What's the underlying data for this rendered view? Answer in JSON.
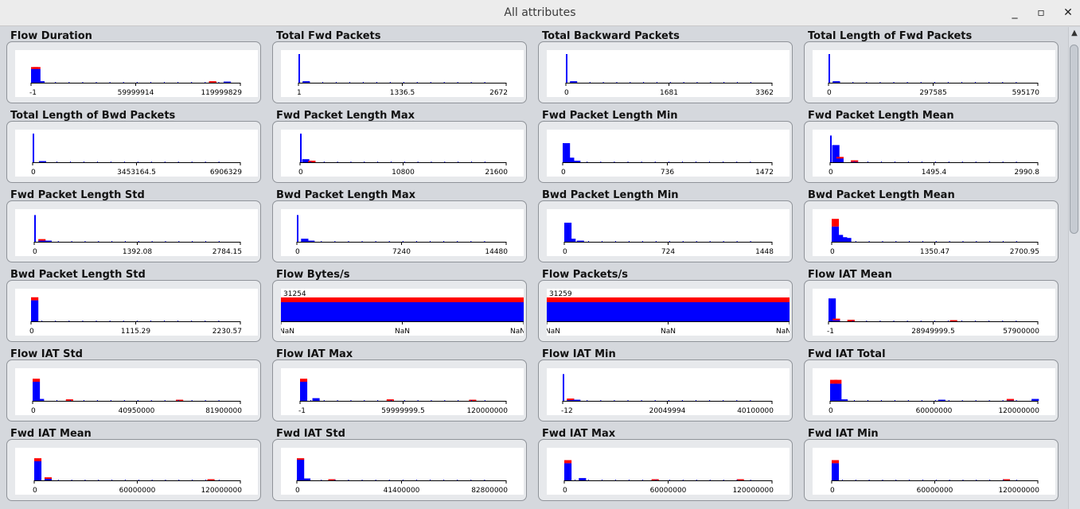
{
  "window": {
    "title": "All attributes",
    "minimize_icon": "minimize-icon",
    "maximize_icon": "maximize-icon",
    "close_icon": "close-icon",
    "minimize_glyph": "_",
    "maximize_glyph": "▫",
    "close_glyph": "✕"
  },
  "scrollbar": {
    "up_icon": "arrow-up-icon",
    "up_glyph": "▲"
  },
  "colors": {
    "nominal": "#0000ff",
    "overflow": "#ff0000",
    "axis": "#000000"
  },
  "attributes": [
    {
      "name": "Flow Duration",
      "ticks": [
        "-1",
        "59999914",
        "119999829"
      ],
      "bins": [
        {
          "x": 0.0,
          "b": 0.36,
          "r": 0.05
        },
        {
          "x": 0.01,
          "b": 0.36,
          "r": 0.05
        },
        {
          "x": 0.03,
          "b": 0.04,
          "r": 0
        },
        {
          "x": 0.85,
          "b": 0.02,
          "r": 0.02
        },
        {
          "x": 0.92,
          "b": 0.03,
          "r": 0
        }
      ]
    },
    {
      "name": "Total Fwd Packets",
      "ticks": [
        "1",
        "1336.5",
        "2672"
      ],
      "bins": [
        {
          "x": 0.0,
          "b": 0.75,
          "r": 0
        },
        {
          "x": 0.02,
          "b": 0.04,
          "r": 0
        }
      ]
    },
    {
      "name": "Total Backward Packets",
      "ticks": [
        "0",
        "1681",
        "3362"
      ],
      "bins": [
        {
          "x": 0.0,
          "b": 0.75,
          "r": 0
        },
        {
          "x": 0.02,
          "b": 0.04,
          "r": 0
        }
      ]
    },
    {
      "name": "Total Length of Fwd Packets",
      "ticks": [
        "0",
        "297585",
        "595170"
      ],
      "bins": [
        {
          "x": 0.0,
          "b": 0.75,
          "r": 0
        },
        {
          "x": 0.02,
          "b": 0.04,
          "r": 0
        }
      ]
    },
    {
      "name": "Total Length of Bwd Packets",
      "ticks": [
        "0",
        "3453164.5",
        "6906329"
      ],
      "bins": [
        {
          "x": 0.0,
          "b": 0.75,
          "r": 0
        },
        {
          "x": 0.03,
          "b": 0.03,
          "r": 0
        }
      ]
    },
    {
      "name": "Fwd Packet Length Max",
      "ticks": [
        "0",
        "10800",
        "21600"
      ],
      "bins": [
        {
          "x": 0.0,
          "b": 0.75,
          "r": 0
        },
        {
          "x": 0.01,
          "b": 0.08,
          "r": 0
        },
        {
          "x": 0.04,
          "b": 0.03,
          "r": 0.01
        }
      ]
    },
    {
      "name": "Fwd Packet Length Min",
      "ticks": [
        "0",
        "736",
        "1472"
      ],
      "bins": [
        {
          "x": 0.0,
          "b": 0.5,
          "r": 0
        },
        {
          "x": 0.02,
          "b": 0.12,
          "r": 0
        },
        {
          "x": 0.05,
          "b": 0.04,
          "r": 0
        }
      ]
    },
    {
      "name": "Fwd Packet Length Mean",
      "ticks": [
        "0",
        "1495.4",
        "2990.8"
      ],
      "bins": [
        {
          "x": 0.0,
          "b": 0.7,
          "r": 0
        },
        {
          "x": 0.01,
          "b": 0.45,
          "r": 0
        },
        {
          "x": 0.03,
          "b": 0.12,
          "r": 0.02
        },
        {
          "x": 0.1,
          "b": 0.03,
          "r": 0.02
        }
      ]
    },
    {
      "name": "Fwd Packet Length Std",
      "ticks": [
        "0",
        "1392.08",
        "2784.15"
      ],
      "bins": [
        {
          "x": 0.0,
          "b": 0.7,
          "r": 0
        },
        {
          "x": 0.02,
          "b": 0.05,
          "r": 0.02
        },
        {
          "x": 0.05,
          "b": 0.03,
          "r": 0
        }
      ]
    },
    {
      "name": "Bwd Packet Length Max",
      "ticks": [
        "0",
        "7240",
        "14480"
      ],
      "bins": [
        {
          "x": 0.0,
          "b": 0.7,
          "r": 0
        },
        {
          "x": 0.02,
          "b": 0.08,
          "r": 0
        },
        {
          "x": 0.05,
          "b": 0.03,
          "r": 0
        }
      ]
    },
    {
      "name": "Bwd Packet Length Min",
      "ticks": [
        "0",
        "724",
        "1448"
      ],
      "bins": [
        {
          "x": 0.0,
          "b": 0.5,
          "r": 0
        },
        {
          "x": 0.02,
          "b": 0.08,
          "r": 0
        },
        {
          "x": 0.06,
          "b": 0.03,
          "r": 0
        }
      ]
    },
    {
      "name": "Bwd Packet Length Mean",
      "ticks": [
        "0",
        "1350.47",
        "2700.95"
      ],
      "bins": [
        {
          "x": 0.0,
          "b": 0.4,
          "r": 0.2
        },
        {
          "x": 0.02,
          "b": 0.18,
          "r": 0
        },
        {
          "x": 0.04,
          "b": 0.12,
          "r": 0
        },
        {
          "x": 0.06,
          "b": 0.1,
          "r": 0
        }
      ]
    },
    {
      "name": "Bwd Packet Length Std",
      "ticks": [
        "0",
        "1115.29",
        "2230.57"
      ],
      "bins": [
        {
          "x": 0.0,
          "b": 0.55,
          "r": 0.08
        }
      ]
    },
    {
      "name": "Flow Bytes/s",
      "ticks": [
        "NaN",
        "NaN",
        "NaN"
      ],
      "count_label": "31254",
      "full_bar": true
    },
    {
      "name": "Flow Packets/s",
      "ticks": [
        "NaN",
        "NaN",
        "NaN"
      ],
      "count_label": "31259",
      "full_bar": true
    },
    {
      "name": "Flow IAT Mean",
      "ticks": [
        "-1",
        "28949999.5",
        "57900000"
      ],
      "bins": [
        {
          "x": 0.0,
          "b": 0.6,
          "r": 0
        },
        {
          "x": 0.02,
          "b": 0.05,
          "r": 0.02
        },
        {
          "x": 0.09,
          "b": 0,
          "r": 0.04
        },
        {
          "x": 0.58,
          "b": 0,
          "r": 0.03
        }
      ]
    },
    {
      "name": "Flow IAT Std",
      "ticks": [
        "0",
        "40950000",
        "81900000"
      ],
      "bins": [
        {
          "x": 0.0,
          "b": 0.5,
          "r": 0.08
        },
        {
          "x": 0.02,
          "b": 0.05,
          "r": 0
        },
        {
          "x": 0.16,
          "b": 0,
          "r": 0.04
        },
        {
          "x": 0.69,
          "b": 0,
          "r": 0.03
        }
      ]
    },
    {
      "name": "Flow IAT Max",
      "ticks": [
        "-1",
        "59999999.5",
        "120000000"
      ],
      "bins": [
        {
          "x": 0.0,
          "b": 0.5,
          "r": 0.08
        },
        {
          "x": 0.06,
          "b": 0.07,
          "r": 0
        },
        {
          "x": 0.42,
          "b": 0,
          "r": 0.04
        },
        {
          "x": 0.82,
          "b": 0,
          "r": 0.03
        }
      ]
    },
    {
      "name": "Flow IAT Min",
      "ticks": [
        "-12",
        "20049994",
        "40100000"
      ],
      "bins": [
        {
          "x": 0.0,
          "b": 0.7,
          "r": 0
        },
        {
          "x": 0.02,
          "b": 0.04,
          "r": 0.02
        },
        {
          "x": 0.05,
          "b": 0.03,
          "r": 0
        }
      ]
    },
    {
      "name": "Fwd IAT Total",
      "ticks": [
        "0",
        "60000000",
        "120000000"
      ],
      "bins": [
        {
          "x": 0.0,
          "b": 0.45,
          "r": 0.1
        },
        {
          "x": 0.02,
          "b": 0.45,
          "r": 0.1
        },
        {
          "x": 0.05,
          "b": 0.04,
          "r": 0
        },
        {
          "x": 0.52,
          "b": 0.03,
          "r": 0
        },
        {
          "x": 0.85,
          "b": 0.03,
          "r": 0.02
        },
        {
          "x": 0.97,
          "b": 0.05,
          "r": 0
        }
      ]
    },
    {
      "name": "Fwd IAT Mean",
      "ticks": [
        "0",
        "60000000",
        "120000000"
      ],
      "bins": [
        {
          "x": 0.0,
          "b": 0.5,
          "r": 0.08
        },
        {
          "x": 0.05,
          "b": 0.05,
          "r": 0.03
        },
        {
          "x": 0.84,
          "b": 0,
          "r": 0.03
        }
      ]
    },
    {
      "name": "Fwd IAT Std",
      "ticks": [
        "0",
        "41400000",
        "82800000"
      ],
      "bins": [
        {
          "x": 0.0,
          "b": 0.55,
          "r": 0.03
        },
        {
          "x": 0.03,
          "b": 0.05,
          "r": 0
        },
        {
          "x": 0.15,
          "b": 0,
          "r": 0.03
        }
      ]
    },
    {
      "name": "Fwd IAT Max",
      "ticks": [
        "0",
        "60000000",
        "120000000"
      ],
      "bins": [
        {
          "x": 0.0,
          "b": 0.45,
          "r": 0.08
        },
        {
          "x": 0.07,
          "b": 0.06,
          "r": 0
        },
        {
          "x": 0.42,
          "b": 0,
          "r": 0.03
        },
        {
          "x": 0.83,
          "b": 0,
          "r": 0.03
        }
      ]
    },
    {
      "name": "Fwd IAT Min",
      "ticks": [
        "0",
        "60000000",
        "120000000"
      ],
      "bins": [
        {
          "x": 0.0,
          "b": 0.45,
          "r": 0.08
        },
        {
          "x": 0.83,
          "b": 0,
          "r": 0.03
        }
      ]
    }
  ]
}
